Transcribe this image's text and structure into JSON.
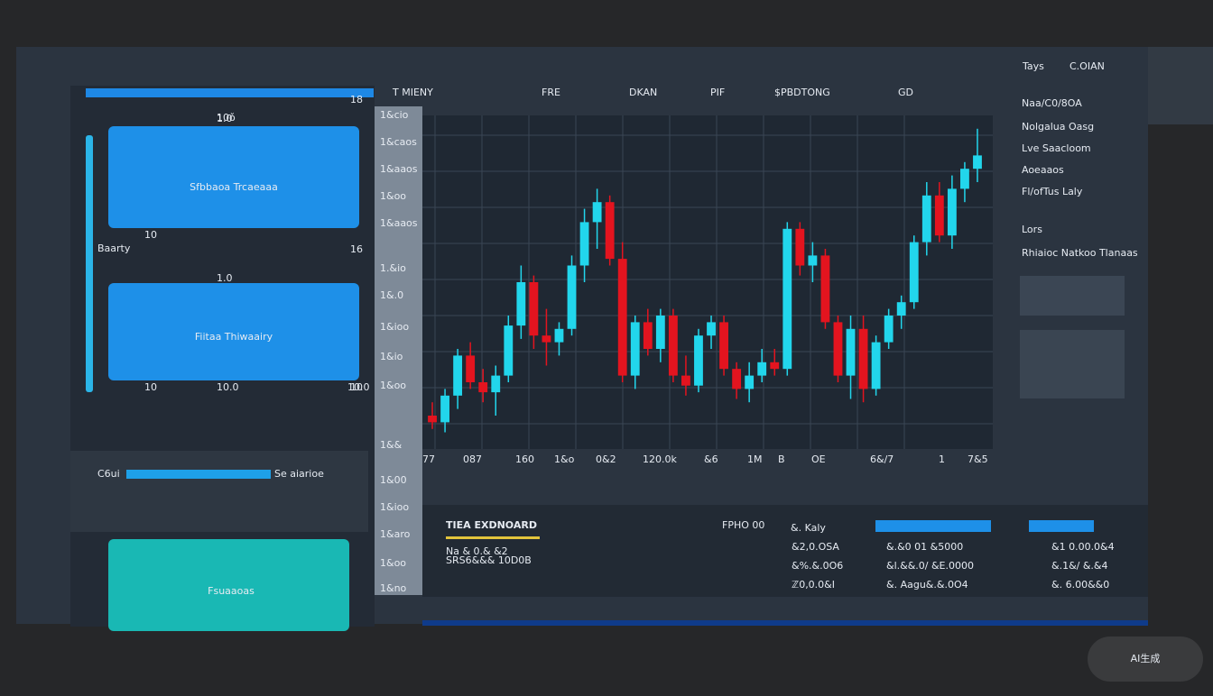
{
  "nav": [
    "T MIENY",
    "FRE",
    "DKAN",
    "PIF",
    "$PBDTONG",
    "GD"
  ],
  "right_panel": {
    "header": [
      "Tays",
      "C.OIAN"
    ],
    "items": [
      "Naa/C0/8OA",
      "Nolgalua Oasg",
      "Lve Saacloom",
      "Aoeaaos",
      "Fl/ofTus Laly"
    ],
    "section": "Lors",
    "section_item": "Rhiaioc Natkoo Tlanaas"
  },
  "sidebar": {
    "top_label": "10ǒ",
    "row_labels": [
      "Baarty",
      "10",
      "16",
      "1.0",
      "1.0",
      "18",
      "10",
      "10.0",
      "10",
      "10.0"
    ],
    "card_1": "Sfbbaoa Trcaeaaa",
    "card_2": "Fiitaa Thiwaairy",
    "progress_label": "C6ui",
    "progress_value": "Se aiarioe",
    "card_3": "Fsuaaoas"
  },
  "side_labels": [
    "1&cio",
    "1&caos",
    "1&aaos",
    "1&oo",
    "1&aaos",
    "1.&io",
    "1&.0",
    "1&ioo",
    "1&io",
    "1&oo",
    "1&&",
    "1&00",
    "1&ioo",
    "1&aro",
    "1&oo",
    "1&no"
  ],
  "chart_data": {
    "type": "candlestick",
    "x_labels": [
      "77",
      "087",
      "160",
      "1&o",
      "0&2",
      "120.0k",
      "&6",
      "1M",
      "B",
      "OE",
      "6&/7",
      "1",
      "7&5"
    ],
    "ylim": [
      0,
      100
    ],
    "up_color": "#22d6ec",
    "down_color": "#e3141f",
    "open": [
      10,
      8,
      16,
      28,
      20,
      17,
      22,
      37,
      50,
      34,
      32,
      36,
      55,
      68,
      74,
      57,
      22,
      38,
      30,
      40,
      22,
      19,
      34,
      38,
      24,
      18,
      22,
      26,
      24,
      66,
      55,
      58,
      38,
      22,
      36,
      18,
      32,
      40,
      44,
      62,
      76,
      64,
      78,
      84
    ],
    "high": [
      14,
      18,
      30,
      32,
      24,
      25,
      40,
      55,
      52,
      42,
      38,
      58,
      72,
      78,
      76,
      62,
      40,
      42,
      42,
      42,
      28,
      36,
      40,
      40,
      26,
      26,
      30,
      30,
      68,
      68,
      62,
      60,
      40,
      40,
      40,
      34,
      42,
      46,
      64,
      80,
      80,
      82,
      86,
      96
    ],
    "low": [
      6,
      5,
      12,
      18,
      14,
      10,
      20,
      33,
      30,
      25,
      28,
      34,
      50,
      60,
      55,
      20,
      18,
      28,
      26,
      20,
      16,
      17,
      30,
      22,
      15,
      14,
      20,
      22,
      22,
      52,
      50,
      36,
      20,
      15,
      14,
      16,
      30,
      36,
      42,
      58,
      62,
      60,
      74,
      80
    ],
    "close": [
      8,
      16,
      28,
      20,
      17,
      22,
      37,
      50,
      34,
      32,
      36,
      55,
      68,
      74,
      57,
      22,
      38,
      30,
      40,
      22,
      19,
      34,
      38,
      24,
      18,
      22,
      26,
      24,
      66,
      55,
      58,
      38,
      22,
      36,
      18,
      32,
      40,
      44,
      62,
      76,
      64,
      78,
      84,
      88
    ]
  },
  "bottom": {
    "title": "TIEA EXDNOARD",
    "lines": [
      "Na & 0.& &2",
      "SRS6&&& 10D0B"
    ],
    "col_header": "FPHO 00",
    "col_header_2": "&. Kaly",
    "rows": [
      [
        "&2,0.OSA",
        "&.&0 01 &5000",
        "&1 0.00.0&4"
      ],
      [
        "&%.&.0O6",
        "&l.&&.0/ &E.0000",
        "&.1&/ &.&4"
      ],
      [
        "ℤ0,0.0&I",
        "&. Aagu&.&.0O4",
        "&. 6.00&&0"
      ]
    ]
  },
  "watermark": "AI生成"
}
